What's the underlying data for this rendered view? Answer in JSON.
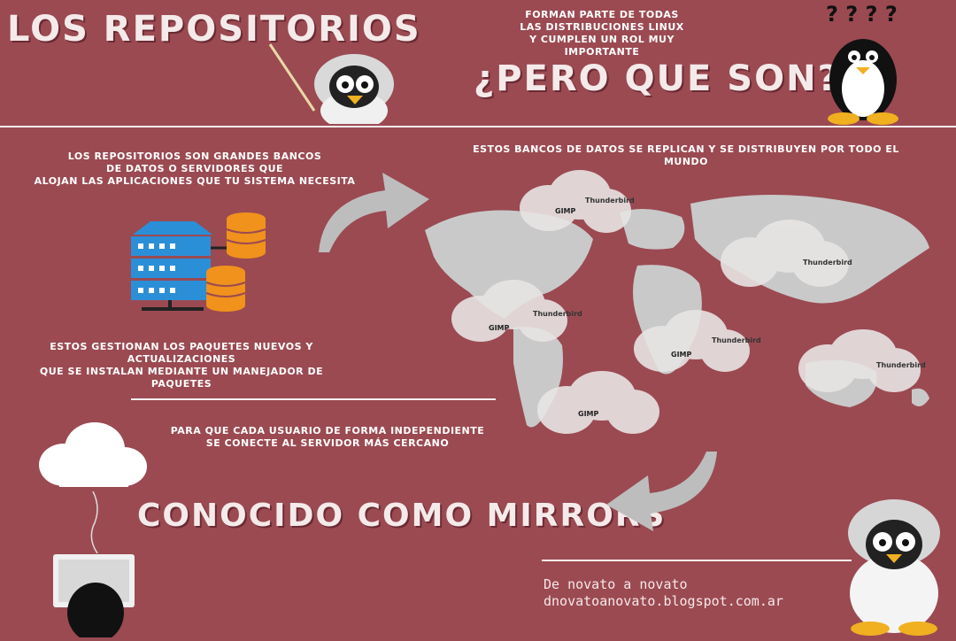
{
  "header": {
    "title": "LOS REPOSITORIOS",
    "intro_lines": [
      "FORMAN PARTE DE TODAS",
      "LAS DISTRIBUCIONES LINUX",
      "Y CUMPLEN UN ROL MUY IMPORTANTE"
    ],
    "question": "¿PERO QUE SON?",
    "question_marks": "? ? ? ?"
  },
  "left": {
    "definition_lines": [
      "LOS REPOSITORIOS SON GRANDES BANCOS",
      "DE DATOS O SERVIDORES QUE",
      "ALOJAN LAS APLICACIONES QUE TU SISTEMA NECESITA"
    ],
    "packages_lines": [
      "ESTOS GESTIONAN LOS PAQUETES NUEVOS Y ACTUALIZACIONES",
      "QUE SE INSTALAN MEDIANTE UN MANEJADOR DE PAQUETES"
    ]
  },
  "right": {
    "replicate_text": "ESTOS BANCOS DE DATOS SE REPLICAN Y SE DISTRIBUYEN POR TODO EL MUNDO"
  },
  "map": {
    "cloud_label_app1": "GIMP",
    "cloud_label_app2": "Thunderbird"
  },
  "bottom": {
    "independent_lines": [
      "PARA QUE CADA USUARIO DE FORMA INDEPENDIENTE",
      "SE CONECTE AL SERVIDOR MÁS CERCANO"
    ],
    "mirrors_title": "CONOCIDO COMO MIRRORS",
    "credit_line1": "De novato a novato",
    "credit_line2": "dnovatoanovato.blogspot.com.ar"
  },
  "colors": {
    "background": "#9b4a52",
    "server_blue": "#2b8fd8",
    "database_orange": "#f0921c",
    "map_gray": "#c9c9c9"
  }
}
